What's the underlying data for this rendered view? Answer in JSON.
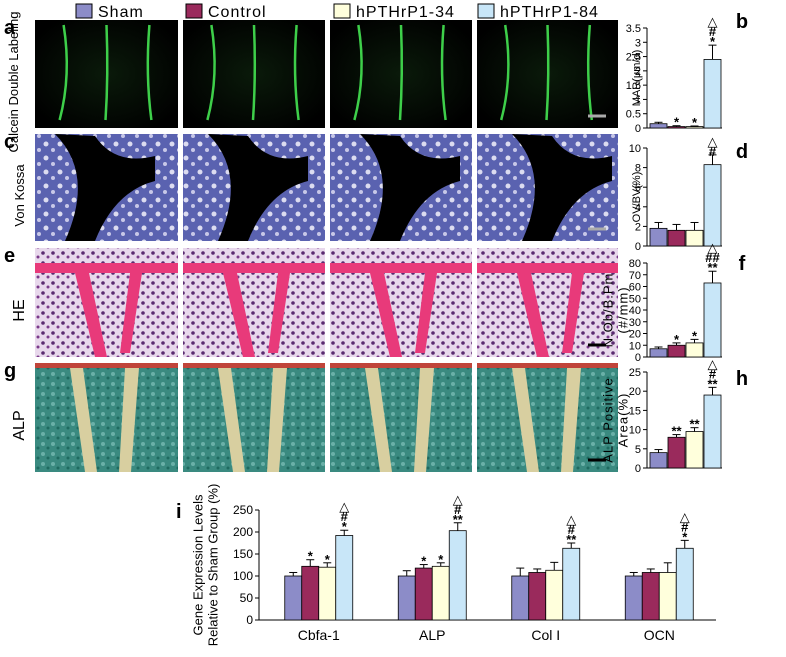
{
  "legend": [
    {
      "name": "Sham",
      "color": "#8c8cc8"
    },
    {
      "name": "Control",
      "color": "#9a2a5c"
    },
    {
      "name": "hPTHrP1-34",
      "color": "#ffffdc"
    },
    {
      "name": "hPTHrP1-84",
      "color": "#c8e6f8"
    }
  ],
  "image_rows": [
    {
      "letter": "a",
      "label": "Calcein Double Labeling"
    },
    {
      "letter": "c",
      "label": "Von Kossa"
    },
    {
      "letter": "e",
      "label": "HE"
    },
    {
      "letter": "g",
      "label": "ALP"
    }
  ],
  "chart_data": [
    {
      "type": "bar",
      "panel": "b",
      "ylabel": [
        "MAR(μm/d)"
      ],
      "ylim": [
        0,
        3.5
      ],
      "yticks": [
        0,
        0.5,
        1,
        1.5,
        2,
        2.5,
        3,
        3.5
      ],
      "values": [
        0.15,
        0.05,
        0.05,
        2.4
      ],
      "errors": [
        0.05,
        0.03,
        0.02,
        0.5
      ],
      "marks": [
        null,
        [
          "*"
        ],
        [
          "*"
        ],
        [
          "△",
          "#",
          "*"
        ]
      ]
    },
    {
      "type": "bar",
      "panel": "d",
      "ylabel": [
        "OV/BV(%)"
      ],
      "ylim": [
        0,
        10
      ],
      "yticks": [
        0,
        2,
        4,
        6,
        8,
        10
      ],
      "values": [
        1.8,
        1.6,
        1.6,
        8.3
      ],
      "errors": [
        0.6,
        0.6,
        0.8,
        1.0
      ],
      "marks": [
        null,
        null,
        null,
        [
          "△",
          "#"
        ]
      ]
    },
    {
      "type": "bar",
      "panel": "f",
      "ylabel": [
        "N.Ob/B.Pm",
        "(#/mm)"
      ],
      "ylim": [
        0,
        80
      ],
      "yticks": [
        0,
        10,
        20,
        30,
        40,
        50,
        60,
        70,
        80
      ],
      "values": [
        7,
        10,
        12,
        63
      ],
      "errors": [
        1.5,
        2,
        3,
        10
      ],
      "marks": [
        null,
        [
          "*"
        ],
        [
          "*"
        ],
        [
          "△",
          "##",
          "**"
        ]
      ]
    },
    {
      "type": "bar",
      "panel": "h",
      "ylabel": [
        "ALP Positive",
        "Area(%)"
      ],
      "ylim": [
        0,
        25
      ],
      "yticks": [
        0,
        5,
        10,
        15,
        20,
        25
      ],
      "values": [
        4,
        8,
        9.5,
        19
      ],
      "errors": [
        0.8,
        0.7,
        1,
        2
      ],
      "marks": [
        null,
        [
          "**"
        ],
        [
          "**"
        ],
        [
          "△",
          "#",
          "**"
        ]
      ]
    },
    {
      "type": "grouped-bar",
      "panel": "i",
      "ylabel": [
        "Gene Expression Levels",
        "Relative to Sham Group (%)"
      ],
      "ylim": [
        0,
        250
      ],
      "yticks": [
        0,
        50,
        100,
        150,
        200,
        250
      ],
      "categories": [
        "Cbfa-1",
        "ALP",
        "Col I",
        "OCN"
      ],
      "series": [
        {
          "values": [
            100,
            100,
            100,
            100
          ],
          "errors": [
            8,
            12,
            18,
            8
          ],
          "marks": [
            null,
            null,
            null,
            null
          ]
        },
        {
          "values": [
            122,
            118,
            108,
            108
          ],
          "errors": [
            15,
            8,
            8,
            8
          ],
          "marks": [
            [
              "*"
            ],
            [
              "*"
            ],
            null,
            null
          ]
        },
        {
          "values": [
            120,
            122,
            113,
            108
          ],
          "errors": [
            10,
            8,
            18,
            22
          ],
          "marks": [
            [
              "*"
            ],
            [
              "*"
            ],
            null,
            null
          ]
        },
        {
          "values": [
            192,
            203,
            163,
            163
          ],
          "errors": [
            12,
            18,
            12,
            18
          ],
          "marks": [
            [
              "△",
              "#",
              "*"
            ],
            [
              "△",
              "#",
              "**"
            ],
            [
              "△",
              "#",
              "**"
            ],
            [
              "△",
              "#",
              "*"
            ]
          ]
        }
      ]
    }
  ]
}
